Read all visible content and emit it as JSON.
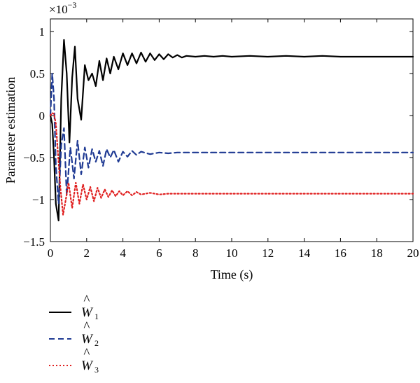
{
  "chart_data": {
    "type": "line",
    "title": "",
    "xlabel": "Time (s)",
    "ylabel": "Parameter estimation",
    "y_multiplier_label": "×10",
    "y_multiplier_exponent": "−3",
    "xlim": [
      0,
      20
    ],
    "ylim": [
      -1.5,
      1.15
    ],
    "xticks": [
      0,
      2,
      4,
      6,
      8,
      10,
      12,
      14,
      16,
      18,
      20
    ],
    "xtick_labels": [
      "0",
      "2",
      "4",
      "6",
      "8",
      "10",
      "12",
      "14",
      "16",
      "18",
      "20"
    ],
    "yticks": [
      1,
      0.5,
      0,
      -0.5,
      -1,
      -1.5
    ],
    "ytick_labels": [
      "1",
      "0.5",
      "0",
      "−0.5",
      "−1",
      "−1.5"
    ],
    "grid": false,
    "legend_position": "below-left",
    "series": [
      {
        "name": "W1",
        "legend_base": "W",
        "legend_sub": "1",
        "color": "#000000",
        "dash": "solid",
        "x": [
          0,
          0.1,
          0.2,
          0.3,
          0.45,
          0.6,
          0.75,
          0.9,
          1.05,
          1.2,
          1.35,
          1.5,
          1.7,
          1.9,
          2.1,
          2.3,
          2.5,
          2.7,
          2.9,
          3.1,
          3.3,
          3.5,
          3.75,
          4.0,
          4.25,
          4.5,
          4.75,
          5.0,
          5.25,
          5.5,
          5.75,
          6.0,
          6.25,
          6.5,
          6.75,
          7.0,
          7.25,
          7.5,
          8.0,
          8.5,
          9.0,
          9.5,
          10.0,
          11.0,
          12.0,
          13.0,
          14.0,
          15.0,
          16.0,
          17.0,
          18.0,
          19.0,
          20.0
        ],
        "y": [
          0,
          -0.1,
          -0.5,
          -1.05,
          -1.25,
          0.2,
          0.9,
          0.5,
          -0.32,
          0.45,
          0.82,
          0.2,
          -0.05,
          0.6,
          0.42,
          0.5,
          0.35,
          0.65,
          0.42,
          0.68,
          0.5,
          0.7,
          0.55,
          0.74,
          0.6,
          0.74,
          0.62,
          0.75,
          0.64,
          0.74,
          0.66,
          0.73,
          0.67,
          0.73,
          0.69,
          0.72,
          0.69,
          0.71,
          0.7,
          0.71,
          0.7,
          0.71,
          0.7,
          0.71,
          0.7,
          0.71,
          0.7,
          0.71,
          0.7,
          0.7,
          0.7,
          0.7,
          0.7
        ]
      },
      {
        "name": "W2",
        "legend_base": "W",
        "legend_sub": "2",
        "color": "#1f3a93",
        "dash": "8,5",
        "x": [
          0,
          0.1,
          0.2,
          0.3,
          0.45,
          0.6,
          0.75,
          0.9,
          1.1,
          1.3,
          1.5,
          1.7,
          1.9,
          2.1,
          2.3,
          2.5,
          2.7,
          2.9,
          3.1,
          3.3,
          3.5,
          3.75,
          4.0,
          4.25,
          4.5,
          4.75,
          5.0,
          5.5,
          6.0,
          6.5,
          7.0,
          8.0,
          9.0,
          10.0,
          12.0,
          14.0,
          16.0,
          18.0,
          20.0
        ],
        "y": [
          0,
          0.5,
          0.2,
          -0.6,
          -1.05,
          -0.35,
          -0.15,
          -0.95,
          -0.38,
          -0.75,
          -0.3,
          -0.7,
          -0.38,
          -0.62,
          -0.4,
          -0.55,
          -0.42,
          -0.6,
          -0.4,
          -0.5,
          -0.41,
          -0.55,
          -0.43,
          -0.49,
          -0.42,
          -0.47,
          -0.43,
          -0.46,
          -0.44,
          -0.45,
          -0.44,
          -0.44,
          -0.44,
          -0.44,
          -0.44,
          -0.44,
          -0.44,
          -0.44,
          -0.44
        ]
      },
      {
        "name": "W3",
        "legend_base": "W",
        "legend_sub": "3",
        "color": "#e02020",
        "dash": "2,3",
        "x": [
          0,
          0.1,
          0.2,
          0.3,
          0.4,
          0.55,
          0.7,
          0.85,
          1.0,
          1.2,
          1.4,
          1.6,
          1.8,
          2.0,
          2.2,
          2.4,
          2.6,
          2.8,
          3.0,
          3.2,
          3.4,
          3.6,
          3.8,
          4.0,
          4.25,
          4.5,
          4.75,
          5.0,
          5.5,
          6.0,
          6.5,
          7.0,
          8.0,
          9.0,
          10.0,
          12.0,
          14.0,
          16.0,
          18.0,
          20.0
        ],
        "y": [
          0,
          0.03,
          0.02,
          -0.1,
          -0.4,
          -0.85,
          -1.18,
          -1.0,
          -0.8,
          -1.1,
          -0.8,
          -1.05,
          -0.82,
          -1.0,
          -0.85,
          -1.02,
          -0.86,
          -0.98,
          -0.88,
          -0.97,
          -0.89,
          -0.96,
          -0.9,
          -0.95,
          -0.9,
          -0.95,
          -0.91,
          -0.94,
          -0.92,
          -0.94,
          -0.93,
          -0.93,
          -0.93,
          -0.93,
          -0.93,
          -0.93,
          -0.93,
          -0.93,
          -0.93,
          -0.93
        ]
      }
    ]
  }
}
